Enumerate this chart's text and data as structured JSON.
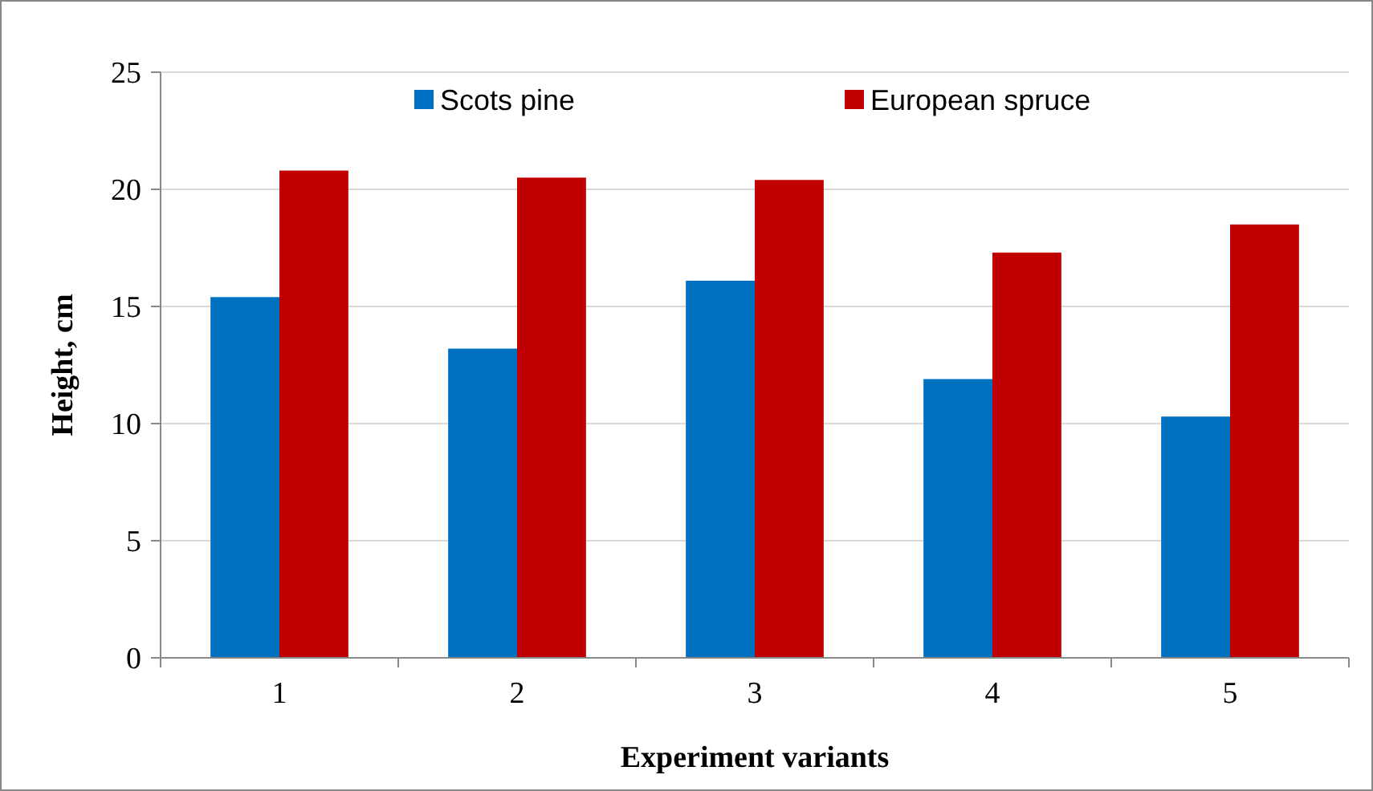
{
  "chart_data": {
    "type": "bar",
    "xlabel": "Experiment variants",
    "ylabel": "Height, cm",
    "categories": [
      "1",
      "2",
      "3",
      "4",
      "5"
    ],
    "series": [
      {
        "name": "Scots pine",
        "color": "#0070c0",
        "values": [
          15.4,
          13.2,
          16.1,
          11.9,
          10.3
        ]
      },
      {
        "name": "European spruce",
        "color": "#c00000",
        "values": [
          20.8,
          20.5,
          20.4,
          17.3,
          18.5
        ]
      }
    ],
    "ylim": [
      0,
      25
    ],
    "yticks": [
      0,
      5,
      10,
      15,
      20,
      25
    ],
    "grid": "y",
    "legend": "top"
  }
}
